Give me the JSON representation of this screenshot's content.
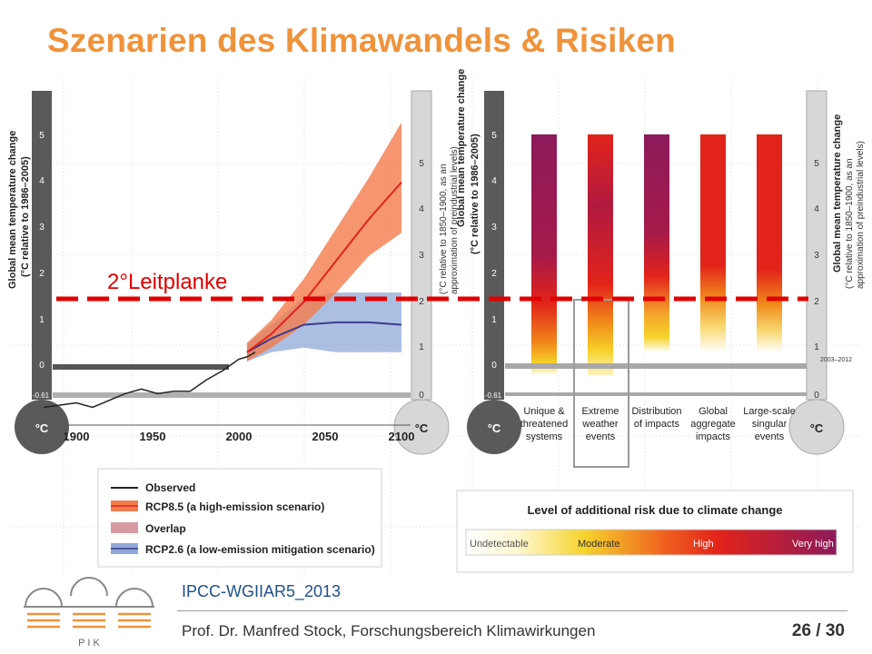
{
  "slide": {
    "title": "Szenarien des Klimawandels & Risiken",
    "source": "IPCC-WGIIAR5_2013",
    "footer": "Prof. Dr. Manfred Stock, Forschungsbereich Klimawirkungen",
    "page": "26 / 30",
    "logo_text": "P I K"
  },
  "annotation": {
    "label": "2°Leitplanke"
  },
  "left_axis": {
    "label_line1": "Global mean temperature change",
    "label_line2": "(°C relative to 1986–2005)",
    "ticks": [
      "5",
      "4",
      "3",
      "2",
      "1",
      "0",
      "-0.61"
    ],
    "unit": "°C"
  },
  "right_axis": {
    "label_line1": "(°C relative to 1850–1900, as an",
    "label_line2": "approximation of preindustrial levels)",
    "ticks": [
      "5",
      "4",
      "3",
      "2",
      "1",
      "0"
    ],
    "unit": "°C",
    "marker_label": "2003–2012"
  },
  "x_axis": {
    "ticks": [
      "1900",
      "1950",
      "2000",
      "2050",
      "2100"
    ]
  },
  "legend": {
    "items": [
      {
        "label": "Observed",
        "color": "#222222"
      },
      {
        "label": "RCP8.5 (a high-emission scenario)",
        "color": "#f47c4c"
      },
      {
        "label": "Overlap",
        "color": "#d79aa0"
      },
      {
        "label": "RCP2.6 (a low-emission mitigation scenario)",
        "color": "#8fa9d9"
      }
    ]
  },
  "risk_scale": {
    "title": "Level of additional risk due to climate change",
    "levels": [
      "Undetectable",
      "Moderate",
      "High",
      "Very high"
    ],
    "colors": [
      "#ffffff",
      "#f6d32b",
      "#e2231a",
      "#8c1a5a"
    ]
  },
  "colors": {
    "accent": "#f0923a",
    "guardrail": "#e00000",
    "source": "#1e4f8c"
  },
  "chart_data": [
    {
      "type": "line",
      "xlabel": "",
      "ylabel": "Global mean temperature change (°C relative to 1986–2005)",
      "xlim": [
        1880,
        2100
      ],
      "ylim": [
        -1,
        5.5
      ],
      "series": [
        {
          "name": "Observed",
          "x": [
            1880,
            1890,
            1900,
            1910,
            1920,
            1930,
            1940,
            1950,
            1960,
            1970,
            1980,
            1990,
            2000,
            2005,
            2010
          ],
          "y": [
            -0.9,
            -0.85,
            -0.8,
            -0.9,
            -0.75,
            -0.6,
            -0.5,
            -0.6,
            -0.55,
            -0.55,
            -0.3,
            -0.1,
            0.15,
            0.2,
            0.3
          ]
        },
        {
          "name": "RCP8.5 (a high-emission scenario)",
          "x": [
            2005,
            2020,
            2040,
            2060,
            2080,
            2100
          ],
          "y": [
            0.3,
            0.7,
            1.4,
            2.3,
            3.2,
            4.0
          ],
          "low": [
            0.1,
            0.4,
            0.9,
            1.6,
            2.4,
            2.9
          ],
          "high": [
            0.5,
            1.0,
            1.9,
            3.0,
            4.1,
            5.3
          ]
        },
        {
          "name": "RCP2.6 (a low-emission mitigation scenario)",
          "x": [
            2005,
            2020,
            2040,
            2060,
            2080,
            2100
          ],
          "y": [
            0.3,
            0.6,
            0.9,
            0.95,
            0.95,
            0.9
          ],
          "low": [
            0.1,
            0.3,
            0.4,
            0.3,
            0.3,
            0.3
          ],
          "high": [
            0.5,
            0.9,
            1.5,
            1.6,
            1.6,
            1.6
          ]
        }
      ]
    },
    {
      "type": "bar",
      "ylabel": "Global mean temperature change (°C relative to 1986–2005)",
      "ylim": [
        -0.61,
        5
      ],
      "categories": [
        "Unique & threatened systems",
        "Extreme weather events",
        "Distribution of impacts",
        "Global aggregate impacts",
        "Large-scale singular events"
      ],
      "values": [
        5,
        5,
        5,
        5,
        5
      ]
    }
  ]
}
